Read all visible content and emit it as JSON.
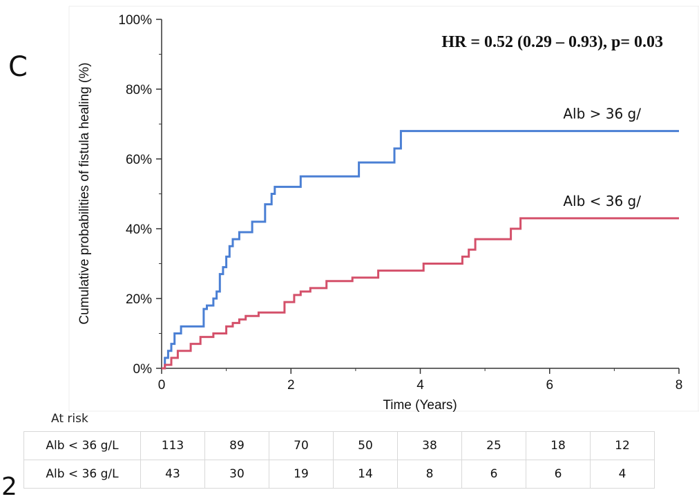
{
  "panel_label": "C",
  "corner_mark": "2",
  "at_risk_label": "At risk",
  "chart_data": {
    "type": "line",
    "title": "",
    "annotation": "HR = 0.52 (0.29 – 0.93), p= 0.03",
    "xlabel": "Time (Years)",
    "ylabel": "Cumulative probabilities of fistula healing (%)",
    "xlim": [
      0,
      8
    ],
    "ylim": [
      0,
      100
    ],
    "x_ticks": [
      0,
      2,
      4,
      6,
      8
    ],
    "x_tick_labels": [
      "0",
      "2",
      "4",
      "6",
      "8"
    ],
    "y_ticks": [
      0,
      20,
      40,
      60,
      80,
      100
    ],
    "y_tick_labels": [
      "0%",
      "20%",
      "40%",
      "60%",
      "80%",
      "100%"
    ],
    "step": true,
    "grid": false,
    "series": [
      {
        "name": "Alb > 36 g/",
        "color": "#4a7fd4",
        "x": [
          0,
          0.05,
          0.1,
          0.15,
          0.2,
          0.3,
          0.65,
          0.7,
          0.8,
          0.85,
          0.9,
          0.95,
          1.0,
          1.05,
          1.1,
          1.2,
          1.4,
          1.6,
          1.7,
          1.75,
          2.15,
          3.05,
          3.6,
          3.7,
          8.0
        ],
        "y": [
          0,
          3,
          5,
          7,
          10,
          12,
          17,
          18,
          20,
          22,
          27,
          29,
          32,
          35,
          37,
          39,
          42,
          47,
          50,
          52,
          55,
          59,
          63,
          68,
          68
        ]
      },
      {
        "name": "Alb < 36 g/",
        "color": "#d4506a",
        "x": [
          0,
          0.05,
          0.15,
          0.25,
          0.45,
          0.6,
          0.8,
          1.0,
          1.1,
          1.2,
          1.3,
          1.5,
          1.9,
          2.05,
          2.15,
          2.3,
          2.55,
          2.95,
          3.35,
          4.05,
          4.65,
          4.75,
          4.85,
          5.4,
          5.55,
          8.0
        ],
        "y": [
          0,
          1,
          3,
          5,
          7,
          9,
          10,
          12,
          13,
          14,
          15,
          16,
          19,
          21,
          22,
          23,
          25,
          26,
          28,
          30,
          32,
          34,
          37,
          40,
          43,
          43
        ]
      }
    ]
  },
  "risk_table": {
    "rows": [
      {
        "label": "Alb < 36 g/L",
        "values": [
          "113",
          "89",
          "70",
          "50",
          "38",
          "25",
          "18",
          "12"
        ]
      },
      {
        "label": "Alb < 36 g/L",
        "values": [
          "43",
          "30",
          "19",
          "14",
          "8",
          "6",
          "6",
          "4"
        ]
      }
    ]
  }
}
